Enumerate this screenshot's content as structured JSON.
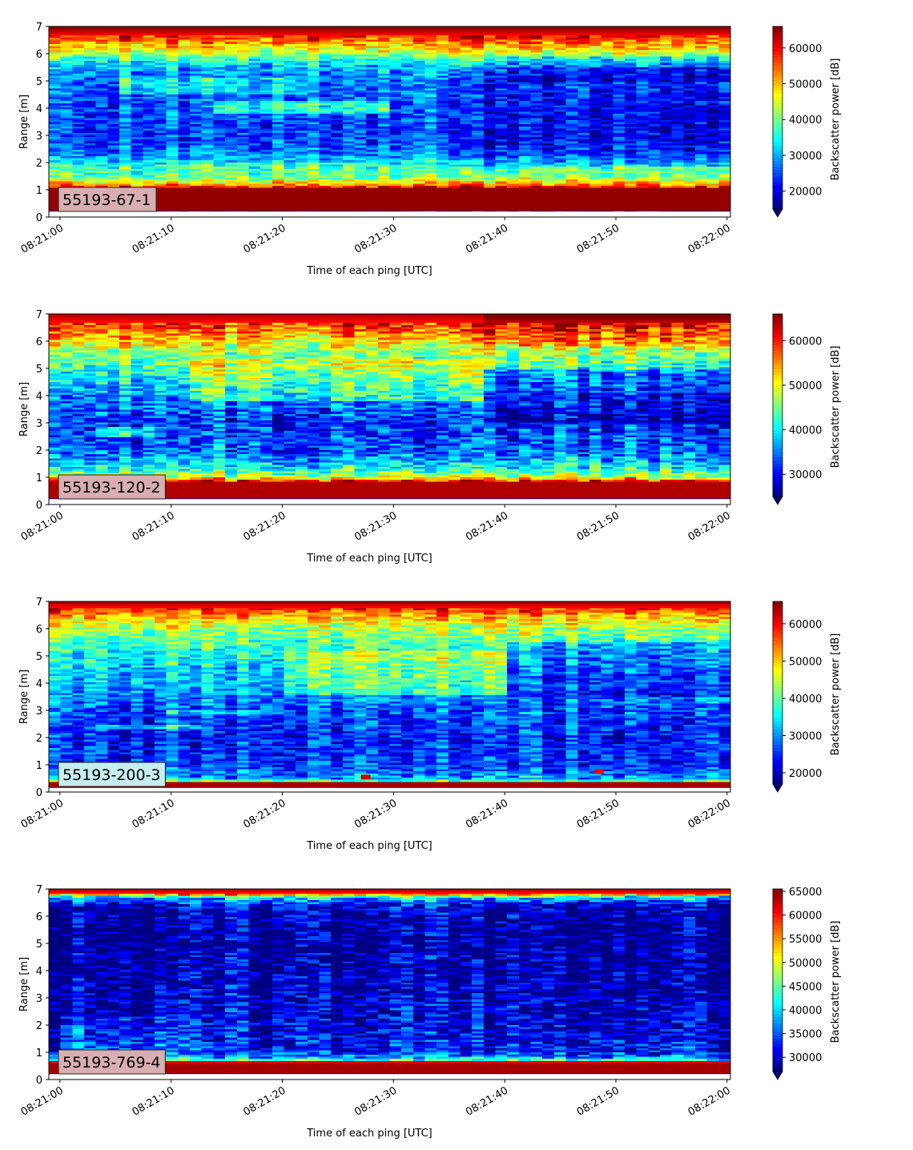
{
  "chart_data": [
    {
      "type": "heatmap",
      "label": "55193-67-1",
      "label_bg": "#d8aeb0",
      "xlabel": "Time of each ping [UTC]",
      "ylabel": "Range [m]",
      "xticks": [
        "08:21:00",
        "08:21:10",
        "08:21:20",
        "08:21:30",
        "08:21:40",
        "08:21:50",
        "08:22:00"
      ],
      "x_range_s": [
        -1,
        60.3
      ],
      "ylim": [
        0,
        7
      ],
      "yticks": [
        "0",
        "1",
        "2",
        "3",
        "4",
        "5",
        "6",
        "7"
      ],
      "colorbar_label": "Backscatter power [dB]",
      "colorbar_range": [
        15000,
        66000
      ],
      "colorbar_ticks": [
        20000,
        30000,
        40000,
        50000,
        60000
      ],
      "colorbar_extend": "min",
      "colormap": "jet",
      "pattern": "p1",
      "profile": [
        [
          0.2,
          65000
        ],
        [
          1.05,
          65000
        ],
        [
          1.25,
          50000
        ],
        [
          1.5,
          40000
        ],
        [
          1.9,
          38000
        ],
        [
          2.05,
          33000
        ],
        [
          2.4,
          28000
        ],
        [
          3.0,
          25000
        ],
        [
          4.0,
          26000
        ],
        [
          5.0,
          28000
        ],
        [
          5.6,
          32000
        ],
        [
          5.9,
          40000
        ],
        [
          6.2,
          48000
        ],
        [
          6.5,
          55000
        ],
        [
          6.8,
          62000
        ],
        [
          7.0,
          66000
        ]
      ],
      "notes": []
    },
    {
      "type": "heatmap",
      "label": "55193-120-2",
      "label_bg": "#d8aeb0",
      "xlabel": "Time of each ping [UTC]",
      "ylabel": "Range [m]",
      "xticks": [
        "08:21:00",
        "08:21:10",
        "08:21:20",
        "08:21:30",
        "08:21:40",
        "08:21:50",
        "08:22:00"
      ],
      "x_range_s": [
        -1,
        60.3
      ],
      "ylim": [
        0,
        7
      ],
      "yticks": [
        "0",
        "1",
        "2",
        "3",
        "4",
        "5",
        "6",
        "7"
      ],
      "colorbar_label": "Backscatter power [dB]",
      "colorbar_range": [
        25000,
        66000
      ],
      "colorbar_ticks": [
        30000,
        40000,
        50000,
        60000
      ],
      "colorbar_extend": "min",
      "colormap": "jet",
      "pattern": "p2",
      "profile": [
        [
          0.2,
          64000
        ],
        [
          0.85,
          64000
        ],
        [
          1.0,
          50000
        ],
        [
          1.3,
          42000
        ],
        [
          1.6,
          38000
        ],
        [
          2.0,
          34000
        ],
        [
          3.0,
          32000
        ],
        [
          4.0,
          36000
        ],
        [
          5.0,
          42000
        ],
        [
          5.5,
          46000
        ],
        [
          6.0,
          52000
        ],
        [
          6.5,
          58000
        ],
        [
          7.0,
          64000
        ]
      ],
      "notes": []
    },
    {
      "type": "heatmap",
      "label": "55193-200-3",
      "label_bg": "#c6eef0",
      "xlabel": "Time of each ping [UTC]",
      "ylabel": "Range [m]",
      "xticks": [
        "08:21:00",
        "08:21:10",
        "08:21:20",
        "08:21:30",
        "08:21:40",
        "08:21:50",
        "08:22:00"
      ],
      "x_range_s": [
        -1,
        60.3
      ],
      "ylim": [
        0,
        7
      ],
      "yticks": [
        "0",
        "1",
        "2",
        "3",
        "4",
        "5",
        "6",
        "7"
      ],
      "colorbar_label": "Backscatter power [dB]",
      "colorbar_range": [
        17000,
        66000
      ],
      "colorbar_ticks": [
        20000,
        30000,
        40000,
        50000,
        60000
      ],
      "colorbar_extend": "min",
      "colormap": "jet",
      "pattern": "p3",
      "profile": [
        [
          0.15,
          64000
        ],
        [
          0.35,
          64000
        ],
        [
          0.45,
          32000
        ],
        [
          1.0,
          26000
        ],
        [
          2.0,
          25000
        ],
        [
          3.0,
          27000
        ],
        [
          3.8,
          32000
        ],
        [
          4.5,
          34000
        ],
        [
          5.3,
          38000
        ],
        [
          6.0,
          44000
        ],
        [
          6.5,
          52000
        ],
        [
          6.8,
          60000
        ],
        [
          7.0,
          65000
        ]
      ],
      "notes": [
        [
          27.5,
          0.55,
          62000
        ],
        [
          48.5,
          0.75,
          60000
        ]
      ]
    },
    {
      "type": "heatmap",
      "label": "55193-769-4",
      "label_bg": "#d8aeb0",
      "xlabel": "Time of each ping [UTC]",
      "ylabel": "Range [m]",
      "xticks": [
        "08:21:00",
        "08:21:10",
        "08:21:20",
        "08:21:30",
        "08:21:40",
        "08:21:50",
        "08:22:00"
      ],
      "x_range_s": [
        -1,
        60.3
      ],
      "ylim": [
        0,
        7
      ],
      "yticks": [
        "0",
        "1",
        "2",
        "3",
        "4",
        "5",
        "6",
        "7"
      ],
      "colorbar_label": "Backscatter power [dB]",
      "colorbar_range": [
        27000,
        65500
      ],
      "colorbar_ticks": [
        30000,
        35000,
        40000,
        45000,
        50000,
        55000,
        60000,
        65000
      ],
      "colorbar_extend": "min",
      "colormap": "jet",
      "pattern": "p4",
      "profile": [
        [
          0.2,
          64000
        ],
        [
          0.65,
          64000
        ],
        [
          0.75,
          40000
        ],
        [
          1.0,
          33000
        ],
        [
          1.5,
          31000
        ],
        [
          2.5,
          30000
        ],
        [
          4.0,
          28500
        ],
        [
          5.5,
          28000
        ],
        [
          6.4,
          30000
        ],
        [
          6.7,
          40000
        ],
        [
          6.85,
          60000
        ],
        [
          7.0,
          64000
        ]
      ],
      "notes": []
    }
  ]
}
